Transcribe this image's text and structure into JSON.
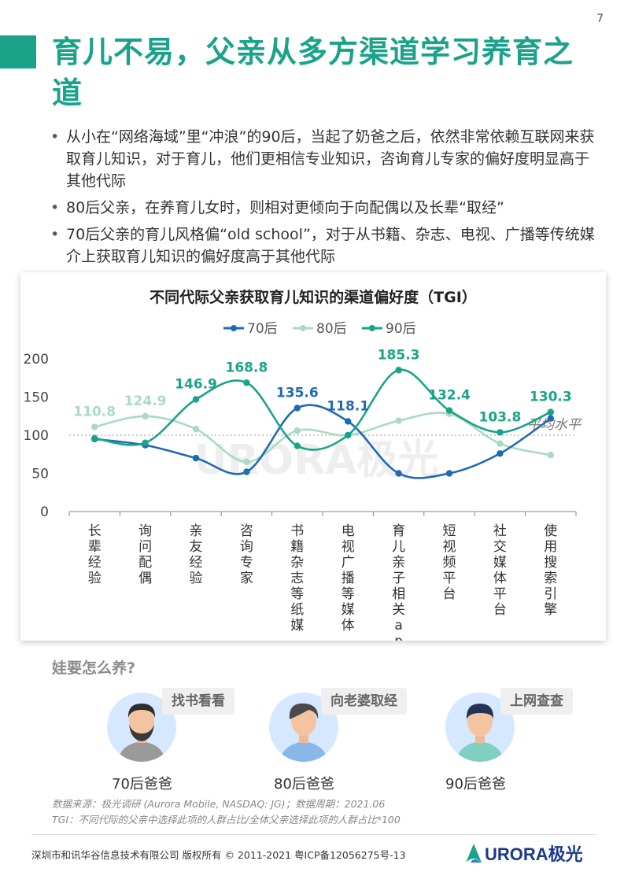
{
  "page_number": "7",
  "title": "育儿不易，父亲从多方渠道学习养育之道",
  "bullets": [
    "从小在“网络海域”里“冲浪”的90后，当起了奶爸之后，依然非常依赖互联网来获取育儿知识，对于育儿，他们更相信专业知识，咨询育儿专家的偏好度明显高于其他代际",
    "80后父亲，在养育儿女时，则相对更倾向于向配偶以及长辈“取经”",
    "70后父亲的育儿风格偏“old school”，对于从书籍、杂志、电视、广播等传统媒介上获取育儿知识的偏好度高于其他代际"
  ],
  "chart_data": {
    "type": "line",
    "title": "不同代际父亲获取育儿知识的渠道偏好度（TGI）",
    "categories": [
      "长辈经验",
      "询问配偶",
      "亲友经验",
      "咨询专家",
      "书籍杂志等纸媒",
      "电视广播等媒体",
      "育儿亲子相关app",
      "短视频平台",
      "社交媒体平台",
      "使用搜索引擎"
    ],
    "series": [
      {
        "name": "70后",
        "color": "#1f6ab5",
        "values": [
          95,
          87,
          70,
          52,
          135.6,
          118.1,
          50,
          50,
          76,
          122
        ]
      },
      {
        "name": "80后",
        "color": "#a8dbc0",
        "values": [
          110.8,
          124.9,
          108,
          65,
          106,
          100,
          119,
          128,
          89,
          74
        ]
      },
      {
        "name": "90后",
        "color": "#1ba38a",
        "values": [
          96,
          90,
          146.9,
          168.8,
          86,
          100,
          185.3,
          132.4,
          103.8,
          130.3
        ]
      }
    ],
    "data_labels": [
      {
        "series": "80后",
        "index": 0,
        "text": "110.8"
      },
      {
        "series": "80后",
        "index": 1,
        "text": "124.9"
      },
      {
        "series": "90后",
        "index": 2,
        "text": "146.9"
      },
      {
        "series": "90后",
        "index": 3,
        "text": "168.8"
      },
      {
        "series": "70后",
        "index": 4,
        "text": "135.6"
      },
      {
        "series": "70后",
        "index": 5,
        "text": "118.1"
      },
      {
        "series": "90后",
        "index": 6,
        "text": "185.3"
      },
      {
        "series": "90后",
        "index": 7,
        "text": "132.4"
      },
      {
        "series": "90后",
        "index": 8,
        "text": "103.8"
      },
      {
        "series": "90后",
        "index": 9,
        "text": "130.3"
      }
    ],
    "ylim": [
      0,
      200
    ],
    "yticks": [
      0,
      50,
      100,
      150,
      200
    ],
    "reference_line": {
      "value": 100,
      "label": "平均水平"
    },
    "legend_position": "top-center",
    "grid": false,
    "watermark": "URORA极光"
  },
  "question": "娃要怎么养?",
  "personas": [
    {
      "bubble": "找书看看",
      "label": "70后爸爸"
    },
    {
      "bubble": "向老婆取经",
      "label": "80后爸爸"
    },
    {
      "bubble": "上网查查",
      "label": "90后爸爸"
    }
  ],
  "source_lines": [
    "数据来源：极光调研 (Aurora Mobile, NASDAQ: JG)；数据周期：2021.06",
    "TGI：不同代际的父亲中选择此项的人群占比/全体父亲选择此项的人群占比*100"
  ],
  "footer": "深圳市和讯华谷信息技术有限公司 版权所有 © 2011-2021 粤ICP备12056275号-13",
  "logo_text": "URORA极光",
  "colors": {
    "brand": "#1ba38a",
    "c70": "#1f6ab5",
    "c80": "#a8dbc0",
    "c90": "#1ba38a"
  }
}
